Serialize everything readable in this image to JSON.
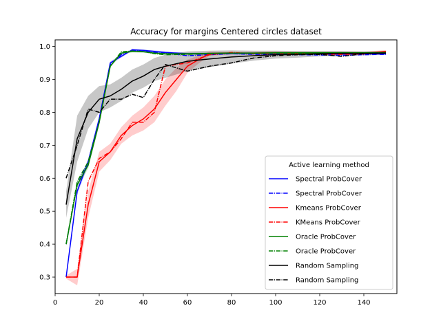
{
  "chart_data": {
    "type": "line",
    "title": "Accuracy for margins Centered circles dataset",
    "xlabel": "",
    "ylabel": "",
    "xlim": [
      0,
      155
    ],
    "ylim": [
      0.25,
      1.02
    ],
    "xticks": [
      0,
      20,
      40,
      60,
      80,
      100,
      120,
      140
    ],
    "yticks": [
      0.3,
      0.4,
      0.5,
      0.6,
      0.7,
      0.8,
      0.9,
      1.0
    ],
    "ytick_labels": [
      "0.3",
      "0.4",
      "0.5",
      "0.6",
      "0.7",
      "0.8",
      "0.9",
      "1.0"
    ],
    "grid": false,
    "legend": {
      "title": "Active learning method",
      "placement": "lower-right"
    },
    "series": [
      {
        "name": "Spectral ProbCover",
        "color": "#0000ff",
        "style": "solid",
        "x": [
          5,
          10,
          15,
          20,
          25,
          30,
          35,
          40,
          45,
          50,
          60,
          70,
          80,
          90,
          100,
          110,
          120,
          130,
          140,
          150
        ],
        "y": [
          0.3,
          0.56,
          0.65,
          0.78,
          0.95,
          0.97,
          0.99,
          0.988,
          0.985,
          0.982,
          0.978,
          0.978,
          0.979,
          0.979,
          0.978,
          0.978,
          0.977,
          0.977,
          0.978,
          0.978
        ],
        "band": [
          0.005,
          0.01,
          0.01,
          0.01,
          0.005,
          0.004,
          0.003,
          0.003,
          0.003,
          0.003,
          0.003,
          0.003,
          0.003,
          0.003,
          0.003,
          0.003,
          0.003,
          0.003,
          0.003,
          0.003
        ]
      },
      {
        "name": "Spectral ProbCover",
        "color": "#0000ff",
        "style": "dashdot",
        "x": [
          5,
          10,
          15,
          20,
          25,
          30,
          35,
          40,
          45,
          50,
          60,
          70,
          80,
          90,
          100,
          110,
          120,
          130,
          140,
          150
        ],
        "y": [
          0.4,
          0.58,
          0.65,
          0.78,
          0.945,
          0.975,
          0.988,
          0.985,
          0.982,
          0.98,
          0.972,
          0.975,
          0.978,
          0.976,
          0.976,
          0.975,
          0.974,
          0.973,
          0.975,
          0.976
        ]
      },
      {
        "name": "Kmeans ProbCover",
        "color": "#ff0000",
        "style": "solid",
        "x": [
          5,
          10,
          15,
          20,
          25,
          30,
          35,
          40,
          45,
          50,
          55,
          60,
          65,
          70,
          80,
          90,
          100,
          110,
          120,
          130,
          140,
          150
        ],
        "y": [
          0.3,
          0.3,
          0.52,
          0.65,
          0.68,
          0.73,
          0.76,
          0.78,
          0.81,
          0.86,
          0.9,
          0.94,
          0.96,
          0.978,
          0.98,
          0.98,
          0.981,
          0.98,
          0.98,
          0.98,
          0.98,
          0.985
        ],
        "band": [
          0.005,
          0.025,
          0.04,
          0.03,
          0.025,
          0.025,
          0.03,
          0.035,
          0.04,
          0.04,
          0.035,
          0.02,
          0.012,
          0.006,
          0.004,
          0.004,
          0.004,
          0.004,
          0.004,
          0.004,
          0.004,
          0.004
        ]
      },
      {
        "name": "KMeans ProbCover",
        "color": "#ff0000",
        "style": "dashdot",
        "x": [
          5,
          10,
          15,
          20,
          25,
          30,
          35,
          40,
          45,
          50,
          60,
          70,
          80,
          90,
          100,
          110,
          120,
          130,
          140,
          150
        ],
        "y": [
          0.3,
          0.3,
          0.59,
          0.66,
          0.68,
          0.72,
          0.77,
          0.77,
          0.8,
          0.94,
          0.95,
          0.975,
          0.982,
          0.978,
          0.979,
          0.978,
          0.977,
          0.976,
          0.977,
          0.983
        ]
      },
      {
        "name": "Oracle ProbCover",
        "color": "#008000",
        "style": "solid",
        "x": [
          5,
          10,
          15,
          20,
          25,
          30,
          35,
          40,
          45,
          50,
          60,
          70,
          80,
          90,
          100,
          110,
          120,
          130,
          140,
          150
        ],
        "y": [
          0.4,
          0.58,
          0.64,
          0.77,
          0.94,
          0.98,
          0.985,
          0.984,
          0.98,
          0.978,
          0.978,
          0.979,
          0.98,
          0.98,
          0.981,
          0.981,
          0.981,
          0.981,
          0.981,
          0.982
        ],
        "band": [
          0.005,
          0.01,
          0.01,
          0.01,
          0.005,
          0.004,
          0.003,
          0.003,
          0.003,
          0.003,
          0.003,
          0.003,
          0.003,
          0.003,
          0.003,
          0.003,
          0.003,
          0.003,
          0.003,
          0.003
        ]
      },
      {
        "name": "Oracle ProbCover",
        "color": "#008000",
        "style": "dashdot",
        "x": [
          5,
          10,
          15,
          20,
          25,
          30,
          35,
          40,
          45,
          50,
          60,
          70,
          80,
          90,
          100,
          110,
          120,
          130,
          140,
          150
        ],
        "y": [
          0.4,
          0.59,
          0.65,
          0.77,
          0.94,
          0.984,
          0.986,
          0.985,
          0.978,
          0.975,
          0.976,
          0.978,
          0.98,
          0.979,
          0.98,
          0.98,
          0.98,
          0.979,
          0.98,
          0.981
        ]
      },
      {
        "name": "Random Sampling",
        "color": "#000000",
        "style": "solid",
        "x": [
          5,
          10,
          15,
          20,
          25,
          30,
          35,
          40,
          45,
          50,
          60,
          70,
          80,
          90,
          100,
          110,
          120,
          130,
          140,
          150
        ],
        "y": [
          0.52,
          0.72,
          0.8,
          0.84,
          0.85,
          0.87,
          0.895,
          0.91,
          0.93,
          0.94,
          0.955,
          0.962,
          0.968,
          0.972,
          0.975,
          0.976,
          0.978,
          0.979,
          0.979,
          0.98
        ],
        "band": [
          0.04,
          0.07,
          0.05,
          0.04,
          0.035,
          0.035,
          0.035,
          0.035,
          0.035,
          0.035,
          0.03,
          0.025,
          0.02,
          0.015,
          0.012,
          0.01,
          0.008,
          0.007,
          0.006,
          0.005
        ]
      },
      {
        "name": "Random Sampling",
        "color": "#000000",
        "style": "dashdot",
        "x": [
          5,
          10,
          15,
          20,
          25,
          30,
          35,
          40,
          45,
          50,
          60,
          70,
          80,
          90,
          100,
          110,
          120,
          130,
          140,
          150
        ],
        "y": [
          0.6,
          0.7,
          0.81,
          0.8,
          0.84,
          0.84,
          0.855,
          0.845,
          0.9,
          0.945,
          0.925,
          0.94,
          0.95,
          0.965,
          0.972,
          0.975,
          0.976,
          0.97,
          0.978,
          0.98
        ]
      }
    ]
  }
}
